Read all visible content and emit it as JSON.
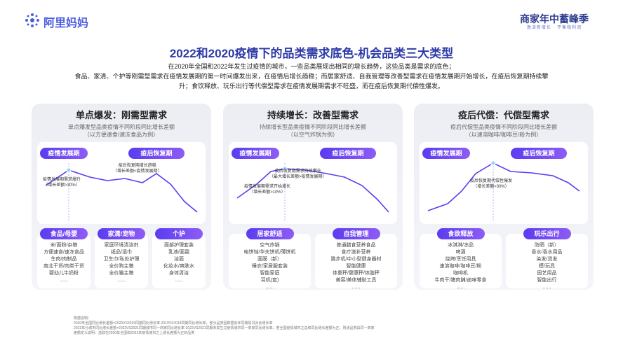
{
  "header": {
    "logo": "阿里妈妈",
    "brand": "商家年中蓄峰季",
    "brand_sub": "激活新增长 · 平衡稳利润"
  },
  "title": "2022和2020疫情下的品类需求底色-机会品类三大类型",
  "intro": [
    "在2020年全国和2022年发生过疫情的城市，一些品类展现出相同的增长趋势，这些品类是需求的底色；",
    "食品、家清、个护等刚需型需求在疫情发展期的第一时间爆发出来，在疫情后增长趋稳；而居家舒适、自我管理等改善型需求在疫情发展期开始增长，在疫后恢复期持续攀",
    "升；食饮释放、玩乐出行等代偿型需求在疫情发展期需求不旺盛，而在疫后恢复期代偿性爆发。"
  ],
  "panels": [
    {
      "title": "单点爆发：刚需型需求",
      "desc": [
        "单点爆发型品类疫情不同阶段同比增长差额",
        "（以方便速食/速冻食品为例）"
      ],
      "phases": [
        "疫情发展期",
        "疫后恢复期"
      ],
      "annotations": [
        [
          "疫情发展期需求爆升",
          "（增长差额>30%）"
        ],
        [
          "疫后恢复期增长趋稳",
          "（增长差额<疫情发展期）"
        ]
      ],
      "groups": [
        {
          "title": "食品/母婴",
          "items": [
            "米/面粉/杂粮",
            "方便速食/速冻食品",
            "生肉/肉制品",
            "南北干货/肉类干货",
            "婴幼儿牛奶粉",
            "......"
          ]
        },
        {
          "title": "家清/宠物",
          "items": [
            "家庭环境清洁剂",
            "纸品/湿巾",
            "卫生巾/私处护理",
            "全价狗主粮",
            "全价猫主粮",
            "......"
          ]
        },
        {
          "title": "个护",
          "items": [
            "面部护理套装",
            "乳液/面霜",
            "洁面",
            "化妆水/爽肤水",
            "身体清洁",
            "......"
          ]
        }
      ]
    },
    {
      "title": "持续增长：改善型需求",
      "desc": [
        "持续增长型品类疫情不同阶段同比增长差额",
        "（以空气炸锅为例）"
      ],
      "phases": [
        "疫情发展期",
        "疫后恢复期"
      ],
      "annotations": [
        [
          "疫情发展期需求开始增长",
          "（增长差额>10%）"
        ],
        [
          "疫后恢复期需求持续攀升",
          "（最大增长差额>疫情发展期）"
        ]
      ],
      "groups": [
        {
          "title": "居家舒适",
          "items": [
            "空气炸锅",
            "电饼铛/华夫饼机/薄饼机",
            "面膜（新）",
            "睡衣/家居服套装",
            "智能家庭",
            "耳机(套)",
            "......"
          ]
        },
        {
          "title": "自我管理",
          "items": [
            "普通膳食营养食品",
            "食疗滋补营养",
            "跳步机/中小型健身器材",
            "智能健康",
            "体重秤/健康秤/体脂秤",
            "美容/美体辅助工具",
            "......"
          ]
        }
      ]
    },
    {
      "title": "疫后代偿：代偿型需求",
      "desc": [
        "疫后代偿型品类疫情不同阶段同比增长差额",
        "（以速溶咖啡/咖啡豆/粉为例）"
      ],
      "phases": [
        "疫情发展期",
        "疫后恢复期"
      ],
      "annotations": [
        [
          "疫后恢复期代偿性爆发",
          "（增长差额>30%）"
        ]
      ],
      "groups": [
        {
          "title": "食欲释放",
          "items": [
            "冰淇淋/冻品",
            "啤酒",
            "烧烤/烹饪用具",
            "速溶咖啡/咖啡豆/粉",
            "咖啡机",
            "牛肉干/猪肉脯/卤味零食",
            "......"
          ]
        },
        {
          "title": "玩乐出行",
          "items": [
            "防晒（新）",
            "香水/香水用品",
            "染发/烫发",
            "模/玩具",
            "园艺用品",
            "智能出行",
            "......"
          ]
        }
      ]
    }
  ],
  "notes": [
    "数据说明：",
    "2020年全国同比增长差额=2020VS2019同期同比增长率-2019VS2018同期同比增长率，部分品类因数据去年同期情况对比增长率",
    "2022年分城市同比增长差额=2022VS2021同期城市同一商家同比增长率-2022VS2021同期未发生过疫情城市同一商家同比增长率，若全国疫情城市之总和同比增长差额为正，则该品类具同一商家",
    "差额定义说明：选取在2020年全国和2022年疫情城市之上增长差额为正的品类"
  ]
}
